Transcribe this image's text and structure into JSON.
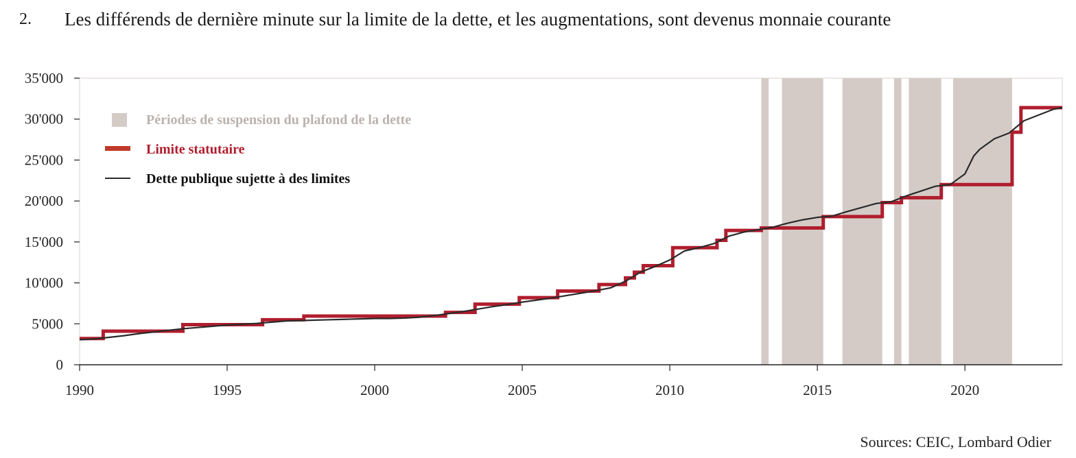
{
  "header": {
    "number": "2.",
    "title": "Les différends de dernière minute sur la limite de la dette, et les augmentations, sont devenus monnaie courante"
  },
  "source": "Sources: CEIC, Lombard Odier",
  "chart_data": {
    "type": "line",
    "title": "Les différends de dernière minute sur la limite de la dette, et les augmentations, sont devenus monnaie courante",
    "xlabel": "",
    "ylabel": "",
    "xlim": [
      1990,
      2023.3
    ],
    "ylim": [
      0,
      35000
    ],
    "x_ticks": [
      1990,
      1995,
      2000,
      2005,
      2010,
      2015,
      2020
    ],
    "x_tick_labels": [
      "1990",
      "1995",
      "2000",
      "2005",
      "2010",
      "2015",
      "2020"
    ],
    "y_ticks": [
      0,
      5000,
      10000,
      15000,
      20000,
      25000,
      30000,
      35000
    ],
    "y_tick_labels": [
      "0",
      "5'000",
      "10'000",
      "15'000",
      "20'000",
      "25'000",
      "30'000",
      "35'000"
    ],
    "grid": false,
    "legend_position": "top-left",
    "legend": [
      {
        "key": "suspensions",
        "label": "Périodes de suspension du plafond de la dette",
        "color": "#d4cbc7"
      },
      {
        "key": "limit",
        "label": "Limite statutaire",
        "color": "#b01e2e"
      },
      {
        "key": "debt",
        "label": "Dette publique sujette à des limites",
        "color": "#2a2a2a"
      }
    ],
    "suspension_periods": [
      [
        2013.1,
        2013.35
      ],
      [
        2013.8,
        2015.2
      ],
      [
        2015.85,
        2017.2
      ],
      [
        2017.6,
        2017.85
      ],
      [
        2018.1,
        2019.2
      ],
      [
        2019.6,
        2021.6
      ]
    ],
    "series": [
      {
        "name": "Limite statutaire",
        "kind": "step",
        "color": "#b01e2e",
        "x": [
          1990,
          1990.8,
          1993.5,
          1996.2,
          1997.6,
          2002.4,
          2003.4,
          2004.9,
          2006.2,
          2007.6,
          2008.5,
          2008.8,
          2009.1,
          2010.1,
          2011.6,
          2011.9,
          2013.1,
          2013.35,
          2015.2,
          2015.85,
          2017.2,
          2017.6,
          2017.85,
          2018.1,
          2019.2,
          2019.6,
          2021.6,
          2021.9,
          2023.3
        ],
        "y": [
          3200,
          4100,
          4900,
          5500,
          5950,
          6400,
          7400,
          8200,
          9000,
          9800,
          10600,
          11300,
          12100,
          14300,
          15200,
          16400,
          16700,
          16700,
          18100,
          18100,
          19800,
          19800,
          20400,
          20400,
          22000,
          22000,
          28400,
          31400,
          31400
        ]
      },
      {
        "name": "Dette publique sujette à des limites",
        "kind": "line",
        "color": "#2a2a2a",
        "x": [
          1990,
          1990.5,
          1991,
          1991.5,
          1992,
          1992.5,
          1993,
          1993.5,
          1994,
          1994.5,
          1995,
          1995.5,
          1996,
          1996.5,
          1997,
          1997.5,
          1998,
          1998.5,
          1999,
          1999.5,
          2000,
          2000.5,
          2001,
          2001.5,
          2002,
          2002.5,
          2003,
          2003.5,
          2004,
          2004.5,
          2005,
          2005.5,
          2006,
          2006.5,
          2007,
          2007.5,
          2008,
          2008.5,
          2009,
          2009.5,
          2010,
          2010.5,
          2011,
          2011.5,
          2012,
          2012.5,
          2013,
          2013.5,
          2014,
          2014.5,
          2015,
          2015.5,
          2016,
          2016.5,
          2017,
          2017.5,
          2018,
          2018.5,
          2019,
          2019.5,
          2020,
          2020.3,
          2020.5,
          2021,
          2021.5,
          2022,
          2022.5,
          2023,
          2023.3
        ],
        "y": [
          3050,
          3150,
          3350,
          3550,
          3800,
          4000,
          4200,
          4400,
          4550,
          4700,
          4850,
          4950,
          5050,
          5200,
          5350,
          5400,
          5450,
          5500,
          5550,
          5600,
          5650,
          5650,
          5700,
          5800,
          6000,
          6250,
          6500,
          6800,
          7100,
          7350,
          7650,
          7900,
          8150,
          8450,
          8750,
          9050,
          9400,
          10200,
          11300,
          12000,
          12800,
          13900,
          14300,
          14800,
          15700,
          16200,
          16500,
          16800,
          17300,
          17700,
          18000,
          18150,
          18700,
          19200,
          19700,
          19900,
          20600,
          21200,
          21800,
          22000,
          23300,
          25500,
          26300,
          27600,
          28300,
          29800,
          30500,
          31200,
          31400
        ]
      }
    ]
  }
}
